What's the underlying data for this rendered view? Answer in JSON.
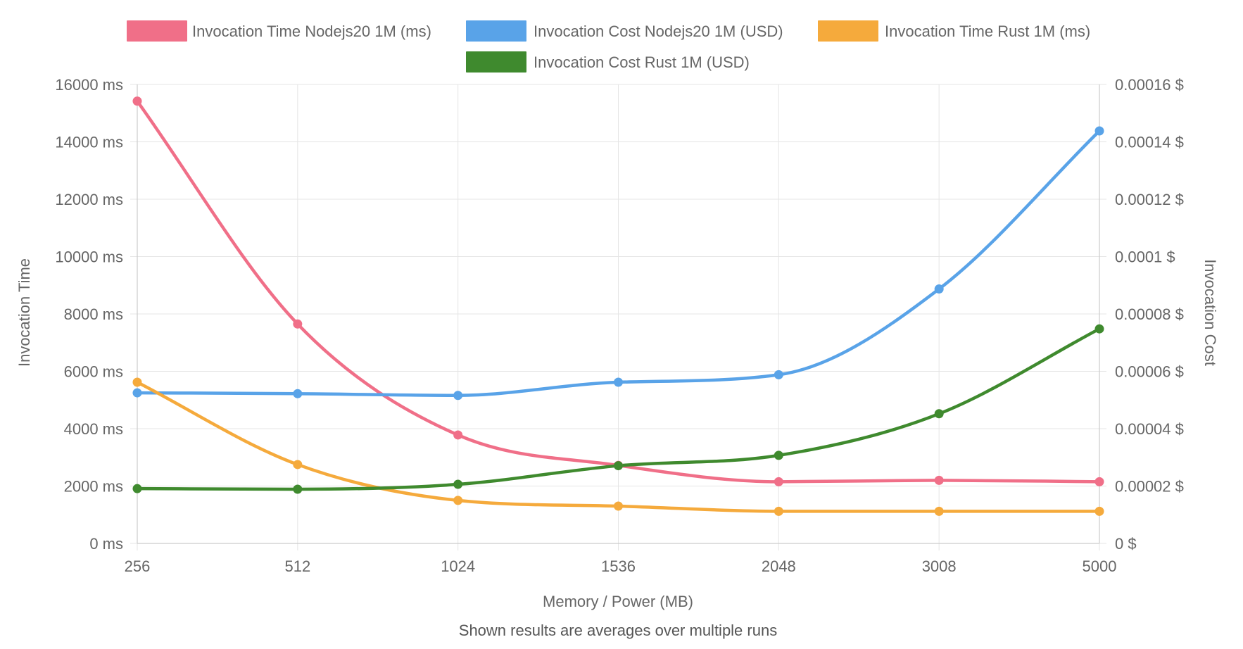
{
  "chart_data": {
    "type": "line",
    "title": "",
    "footer": "Shown results are averages over multiple runs",
    "xlabel": "Memory / Power (MB)",
    "categories": [
      "256",
      "512",
      "1024",
      "1536",
      "2048",
      "3008",
      "5000"
    ],
    "y_left": {
      "label": "Invocation Time",
      "ylim": [
        0,
        16000
      ],
      "ticks": [
        0,
        2000,
        4000,
        6000,
        8000,
        10000,
        12000,
        14000,
        16000
      ],
      "tick_labels": [
        "0 ms",
        "2000 ms",
        "4000 ms",
        "6000 ms",
        "8000 ms",
        "10000 ms",
        "12000 ms",
        "14000 ms",
        "16000 ms"
      ]
    },
    "y_right": {
      "label": "Invocation Cost",
      "ylim": [
        0,
        0.00016
      ],
      "ticks": [
        0,
        2e-05,
        4e-05,
        6e-05,
        8e-05,
        0.0001,
        0.00012,
        0.00014,
        0.00016
      ],
      "tick_labels": [
        "0 $",
        "0.00002 $",
        "0.00004 $",
        "0.00006 $",
        "0.00008 $",
        "0.0001 $",
        "0.00012 $",
        "0.00014 $",
        "0.00016 $"
      ]
    },
    "grid": true,
    "legend_position": "top",
    "series": [
      {
        "name": "Invocation Time Nodejs20 1M (ms)",
        "axis": "left",
        "color": "#f06f88",
        "values": [
          15420,
          7650,
          3780,
          2720,
          2150,
          2200,
          2150
        ]
      },
      {
        "name": "Invocation Cost Nodejs20 1M (USD)",
        "axis": "right",
        "color": "#59a3e8",
        "values": [
          5.25e-05,
          5.22e-05,
          5.16e-05,
          5.62e-05,
          5.88e-05,
          8.87e-05,
          0.0001438
        ]
      },
      {
        "name": "Invocation Time Rust 1M (ms)",
        "axis": "left",
        "color": "#f5aa3c",
        "values": [
          5620,
          2750,
          1500,
          1300,
          1120,
          1120,
          1120
        ]
      },
      {
        "name": "Invocation Cost Rust 1M (USD)",
        "axis": "right",
        "color": "#3f8a2e",
        "values": [
          1.91e-05,
          1.89e-05,
          2.06e-05,
          2.71e-05,
          3.07e-05,
          4.52e-05,
          7.48e-05
        ]
      }
    ]
  }
}
